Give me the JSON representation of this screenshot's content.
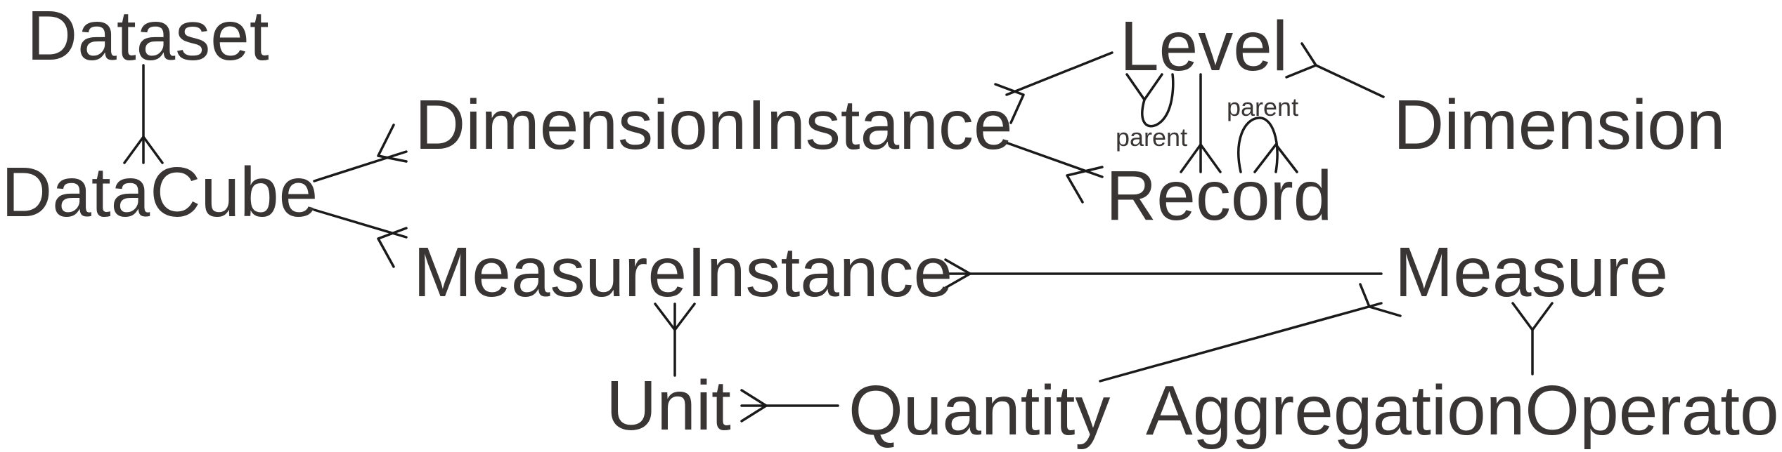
{
  "diagram": {
    "entities": {
      "dataset": "Dataset",
      "datacube": "DataCube",
      "dimension_instance": "DimensionInstance",
      "measure_instance": "MeasureInstance",
      "level": "Level",
      "record": "Record",
      "dimension": "Dimension",
      "measure": "Measure",
      "unit": "Unit",
      "quantity": "Quantity",
      "aggregation_operator": "AggregationOperator"
    },
    "relationships": {
      "level_parent": "parent",
      "record_parent": "parent"
    },
    "edges": [
      {
        "from": "dataset",
        "to": "datacube",
        "to_cardinality": "many"
      },
      {
        "from": "datacube",
        "to": "dimension_instance",
        "to_cardinality": "many"
      },
      {
        "from": "datacube",
        "to": "measure_instance",
        "to_cardinality": "many"
      },
      {
        "from": "dimension_instance",
        "to": "level",
        "from_cardinality": "many"
      },
      {
        "from": "dimension_instance",
        "to": "record",
        "to_cardinality": "many"
      },
      {
        "from": "level",
        "to": "dimension",
        "from_cardinality": "many"
      },
      {
        "from": "level",
        "to": "record",
        "to_cardinality": "many"
      },
      {
        "from": "level",
        "to": "level",
        "label": "parent",
        "to_cardinality": "many"
      },
      {
        "from": "record",
        "to": "record",
        "label": "parent",
        "to_cardinality": "many"
      },
      {
        "from": "measure_instance",
        "to": "measure",
        "from_cardinality": "many"
      },
      {
        "from": "measure_instance",
        "to": "unit",
        "from_cardinality": "many"
      },
      {
        "from": "unit",
        "to": "quantity",
        "from_cardinality": "many"
      },
      {
        "from": "quantity",
        "to": "measure",
        "to_cardinality": "many"
      },
      {
        "from": "aggregation_operator",
        "to": "measure",
        "to_cardinality": "many"
      }
    ]
  }
}
